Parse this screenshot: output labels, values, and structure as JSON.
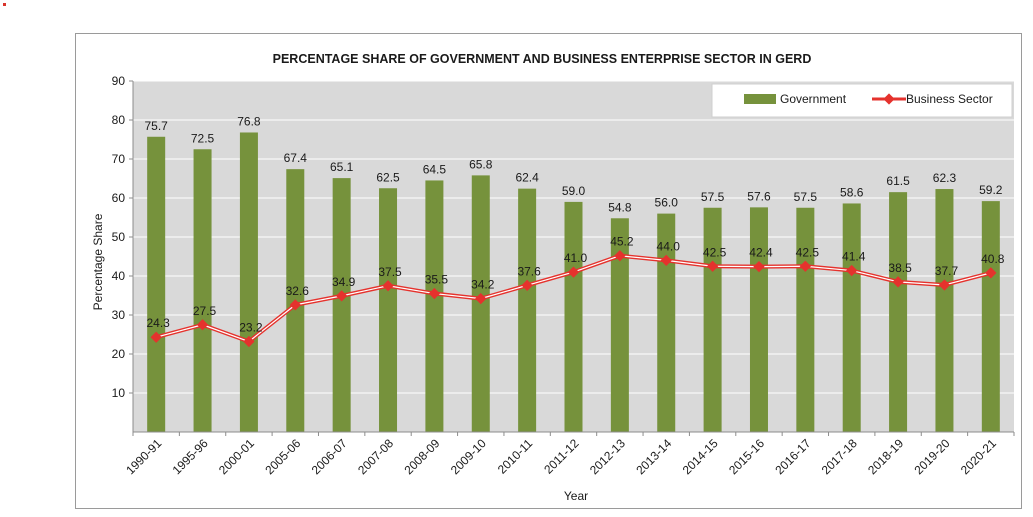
{
  "chart_data": {
    "type": "bar",
    "title": "PERCENTAGE SHARE OF GOVERNMENT AND BUSINESS ENTERPRISE SECTOR IN GERD",
    "xlabel": "Year",
    "ylabel": "Percentage Share",
    "ylim": [
      0,
      90
    ],
    "yticks": [
      10,
      20,
      30,
      40,
      50,
      60,
      70,
      80,
      90
    ],
    "grid": true,
    "legend_position": "top-right",
    "categories": [
      "1990-91",
      "1995-96",
      "2000-01",
      "2005-06",
      "2006-07",
      "2007-08",
      "2008-09",
      "2009-10",
      "2010-11",
      "2011-12",
      "2012-13",
      "2013-14",
      "2014-15",
      "2015-16",
      "2016-17",
      "2017-18",
      "2018-19",
      "2019-20",
      "2020-21"
    ],
    "series": [
      {
        "name": "Government",
        "type": "bar",
        "color": "#76923c",
        "values": [
          75.7,
          72.5,
          76.8,
          67.4,
          65.1,
          62.5,
          64.5,
          65.8,
          62.4,
          59.0,
          54.8,
          56.0,
          57.5,
          57.6,
          57.5,
          58.6,
          61.5,
          62.3,
          59.2
        ],
        "labels": [
          "75.7",
          "72.5",
          "76.8",
          "67.4",
          "65.1",
          "62.5",
          "64.5",
          "65.8",
          "62.4",
          "59.0",
          "54.8",
          "56.0",
          "57.5",
          "57.6",
          "57.5",
          "58.6",
          "61.5",
          "62.3",
          "59.2"
        ]
      },
      {
        "name": "Business Sector",
        "type": "line",
        "color": "#e5322d",
        "values": [
          24.3,
          27.5,
          23.2,
          32.6,
          34.9,
          37.5,
          35.5,
          34.2,
          37.6,
          41.0,
          45.2,
          44.0,
          42.5,
          42.4,
          42.5,
          41.4,
          38.5,
          37.7,
          40.8
        ],
        "labels": [
          "24.3",
          "27.5",
          "23.2",
          "32.6",
          "34.9",
          "37.5",
          "35.5",
          "34.2",
          "37.6",
          "41.0",
          "45.2",
          "44.0",
          "42.5",
          "42.4",
          "42.5",
          "41.4",
          "38.5",
          "37.7",
          "40.8"
        ]
      }
    ]
  },
  "colors": {
    "plot_background": "#d9d9d9",
    "gridline": "#ffffff",
    "bar": "#76923c",
    "line": "#e5322d"
  }
}
